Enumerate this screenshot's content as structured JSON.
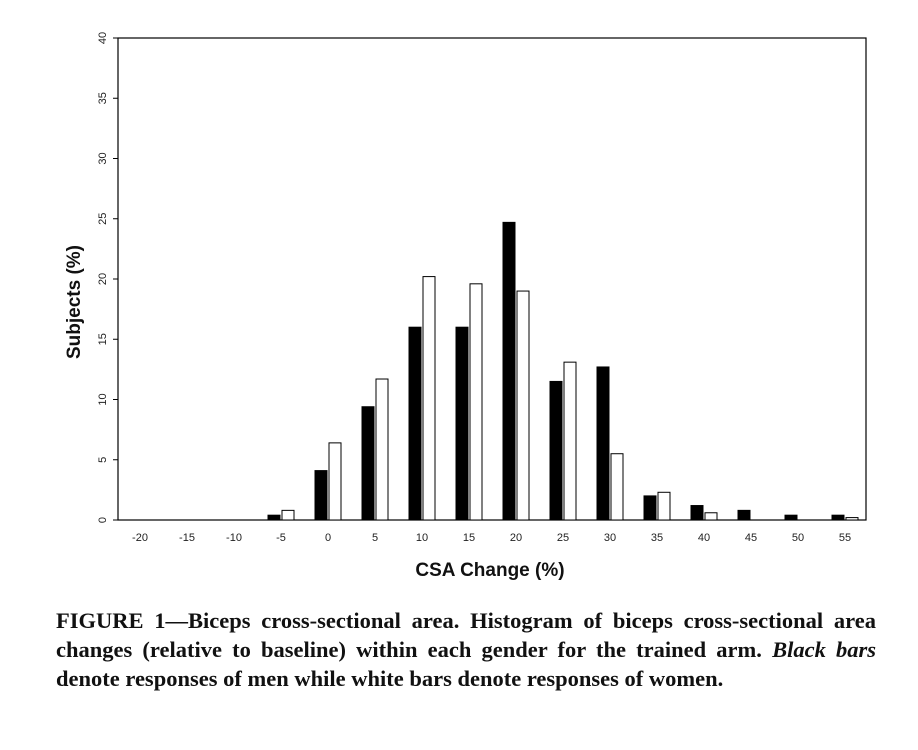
{
  "chart_data": {
    "type": "bar",
    "title": "",
    "xlabel": "CSA Change (%)",
    "ylabel": "Subjects (%)",
    "ylim": [
      0,
      40
    ],
    "yticks": [
      0,
      5,
      10,
      15,
      20,
      25,
      30,
      35,
      40
    ],
    "categories": [
      "-20",
      "-15",
      "-10",
      "-5",
      "0",
      "5",
      "10",
      "15",
      "20",
      "25",
      "30",
      "35",
      "40",
      "45",
      "50",
      "55"
    ],
    "series": [
      {
        "color": "#000000",
        "values": [
          0,
          0,
          0,
          0.4,
          4.1,
          9.4,
          16.0,
          16.0,
          24.7,
          11.5,
          12.7,
          2.0,
          1.2,
          0.8,
          0.4,
          0.4
        ]
      },
      {
        "color": "#ffffff",
        "values": [
          0,
          0,
          0,
          0.8,
          6.4,
          11.7,
          20.2,
          19.6,
          19.0,
          13.1,
          5.5,
          2.3,
          0.6,
          0,
          0,
          0.2
        ]
      }
    ],
    "grid": false,
    "legend": "none"
  },
  "caption": {
    "figure_label": "FIGURE 1",
    "text_part1": "—Biceps cross-sectional area. Histogram of biceps cross-sectional area changes (relative to baseline) within each gender for the trained arm. ",
    "emphasis": "Black bars",
    "text_part2": " denote responses of men while white bars denote responses of women."
  }
}
